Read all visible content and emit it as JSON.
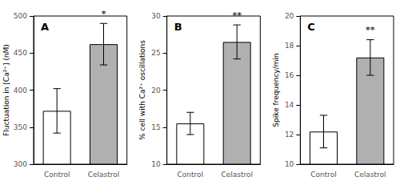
{
  "chart_data": [
    {
      "type": "bar",
      "title": "A",
      "ylabel": "Fluctuation in [Ca²⁺] (nM)",
      "categories": [
        "Control",
        "Celastrol"
      ],
      "values": [
        372,
        462
      ],
      "errors": [
        30,
        28
      ],
      "colors": [
        "#ffffff",
        "#b0b0b0"
      ],
      "ylim": [
        300,
        500
      ],
      "yticks": [
        300,
        350,
        400,
        450,
        500
      ],
      "grid": false,
      "annotations": [
        {
          "x": "Celastrol",
          "text": "*"
        }
      ]
    },
    {
      "type": "bar",
      "title": "B",
      "ylabel": "% cell with Ca²⁺ oscillations",
      "categories": [
        "Control",
        "Celastrol"
      ],
      "values": [
        15.5,
        26.5
      ],
      "errors": [
        1.5,
        2.3
      ],
      "colors": [
        "#ffffff",
        "#b0b0b0"
      ],
      "ylim": [
        10,
        30
      ],
      "yticks": [
        10,
        15,
        20,
        25,
        30
      ],
      "grid": false,
      "annotations": [
        {
          "x": "Celastrol",
          "text": "**"
        }
      ]
    },
    {
      "type": "bar",
      "title": "C",
      "ylabel": "Spike frequency/min",
      "categories": [
        "Control",
        "Celastrol"
      ],
      "values": [
        12.2,
        17.2
      ],
      "errors": [
        1.1,
        1.2
      ],
      "colors": [
        "#ffffff",
        "#b0b0b0"
      ],
      "ylim": [
        10,
        20
      ],
      "yticks": [
        10,
        12,
        14,
        16,
        18,
        20
      ],
      "grid": false,
      "annotations": [
        {
          "x": "Celastrol",
          "text": "**"
        }
      ]
    }
  ]
}
